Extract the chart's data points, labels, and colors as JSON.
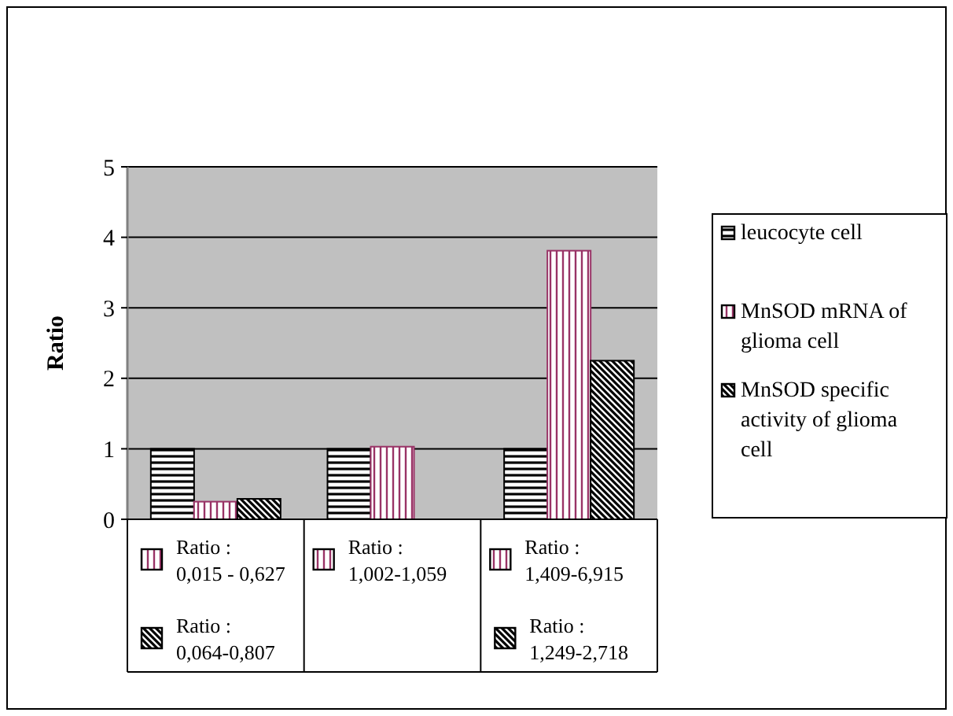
{
  "chart_data": {
    "type": "bar",
    "ylabel": "Ratio",
    "categories": [
      null,
      null,
      null
    ],
    "series": [
      {
        "name": "leucocyte cell",
        "color": "#000000",
        "values": [
          1,
          1,
          1
        ]
      },
      {
        "name": "MnSOD mRNA of glioma cell",
        "color": "#993366",
        "values": [
          0.25,
          1.03,
          3.81
        ]
      },
      {
        "name": "MnSOD specific activity of glioma cell",
        "color": "#000000",
        "values": [
          0.29,
          null,
          2.25
        ]
      }
    ],
    "ylim": [
      0,
      5
    ],
    "yticks": [
      0,
      1,
      2,
      3,
      4,
      5
    ],
    "grid": "y",
    "legend": "right",
    "annotations": [
      "Ratio : 0,015 - 0,627",
      "Ratio : 0,064-0,807",
      "Ratio : 1,002-1,059",
      "Ratio : 1,409-6,915",
      "Ratio : 1,249-2,718"
    ]
  }
}
